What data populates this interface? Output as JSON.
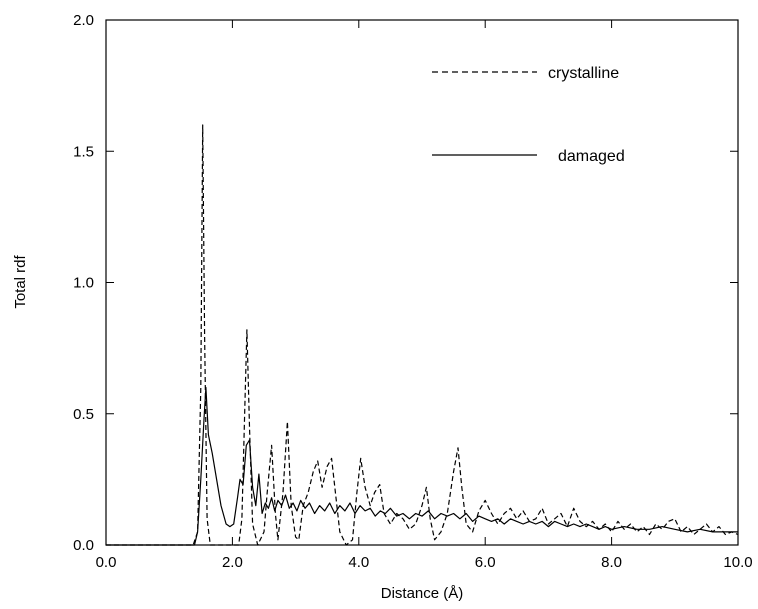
{
  "chart_data": {
    "type": "line",
    "xlabel": "Distance (Å)",
    "ylabel": "Total rdf",
    "xlim": [
      0.0,
      10.0
    ],
    "ylim": [
      0.0,
      2.0
    ],
    "xticks": [
      0.0,
      2.0,
      4.0,
      6.0,
      8.0,
      10.0
    ],
    "xtick_labels": [
      "0.0",
      "2.0",
      "4.0",
      "6.0",
      "8.0",
      "10.0"
    ],
    "yticks": [
      0.0,
      0.5,
      1.0,
      1.5,
      2.0
    ],
    "ytick_labels": [
      "0.0",
      "0.5",
      "1.0",
      "1.5",
      "2.0"
    ],
    "grid": false,
    "legend_position": "top-right",
    "series": [
      {
        "name": "crystalline",
        "style": "dashed",
        "color": "#000000",
        "points": [
          [
            0.0,
            0.0
          ],
          [
            1.38,
            0.0
          ],
          [
            1.45,
            0.05
          ],
          [
            1.5,
            0.6
          ],
          [
            1.53,
            1.6
          ],
          [
            1.56,
            0.8
          ],
          [
            1.6,
            0.1
          ],
          [
            1.65,
            0.0
          ],
          [
            2.1,
            0.0
          ],
          [
            2.15,
            0.1
          ],
          [
            2.2,
            0.55
          ],
          [
            2.23,
            0.82
          ],
          [
            2.27,
            0.45
          ],
          [
            2.32,
            0.08
          ],
          [
            2.4,
            0.0
          ],
          [
            2.5,
            0.05
          ],
          [
            2.55,
            0.2
          ],
          [
            2.62,
            0.38
          ],
          [
            2.68,
            0.12
          ],
          [
            2.72,
            0.02
          ],
          [
            2.8,
            0.2
          ],
          [
            2.87,
            0.47
          ],
          [
            2.93,
            0.15
          ],
          [
            3.0,
            0.03
          ],
          [
            3.05,
            0.02
          ],
          [
            3.12,
            0.15
          ],
          [
            3.2,
            0.2
          ],
          [
            3.28,
            0.28
          ],
          [
            3.35,
            0.32
          ],
          [
            3.42,
            0.22
          ],
          [
            3.5,
            0.3
          ],
          [
            3.57,
            0.33
          ],
          [
            3.63,
            0.2
          ],
          [
            3.7,
            0.05
          ],
          [
            3.8,
            0.0
          ],
          [
            3.9,
            0.02
          ],
          [
            3.97,
            0.2
          ],
          [
            4.03,
            0.33
          ],
          [
            4.1,
            0.22
          ],
          [
            4.18,
            0.15
          ],
          [
            4.25,
            0.2
          ],
          [
            4.33,
            0.23
          ],
          [
            4.4,
            0.12
          ],
          [
            4.5,
            0.08
          ],
          [
            4.6,
            0.12
          ],
          [
            4.7,
            0.1
          ],
          [
            4.8,
            0.06
          ],
          [
            4.9,
            0.08
          ],
          [
            5.0,
            0.15
          ],
          [
            5.07,
            0.22
          ],
          [
            5.13,
            0.1
          ],
          [
            5.2,
            0.02
          ],
          [
            5.3,
            0.05
          ],
          [
            5.4,
            0.12
          ],
          [
            5.5,
            0.28
          ],
          [
            5.57,
            0.37
          ],
          [
            5.63,
            0.22
          ],
          [
            5.7,
            0.08
          ],
          [
            5.8,
            0.05
          ],
          [
            5.9,
            0.13
          ],
          [
            6.0,
            0.17
          ],
          [
            6.1,
            0.12
          ],
          [
            6.2,
            0.08
          ],
          [
            6.3,
            0.12
          ],
          [
            6.4,
            0.14
          ],
          [
            6.5,
            0.1
          ],
          [
            6.6,
            0.13
          ],
          [
            6.7,
            0.09
          ],
          [
            6.8,
            0.1
          ],
          [
            6.9,
            0.14
          ],
          [
            7.0,
            0.08
          ],
          [
            7.1,
            0.1
          ],
          [
            7.2,
            0.12
          ],
          [
            7.3,
            0.07
          ],
          [
            7.4,
            0.14
          ],
          [
            7.5,
            0.09
          ],
          [
            7.6,
            0.07
          ],
          [
            7.7,
            0.09
          ],
          [
            7.8,
            0.06
          ],
          [
            7.9,
            0.08
          ],
          [
            8.0,
            0.05
          ],
          [
            8.1,
            0.09
          ],
          [
            8.2,
            0.06
          ],
          [
            8.3,
            0.08
          ],
          [
            8.4,
            0.05
          ],
          [
            8.5,
            0.07
          ],
          [
            8.6,
            0.04
          ],
          [
            8.7,
            0.08
          ],
          [
            8.8,
            0.06
          ],
          [
            8.9,
            0.09
          ],
          [
            9.0,
            0.1
          ],
          [
            9.1,
            0.05
          ],
          [
            9.2,
            0.07
          ],
          [
            9.3,
            0.04
          ],
          [
            9.4,
            0.06
          ],
          [
            9.5,
            0.08
          ],
          [
            9.6,
            0.05
          ],
          [
            9.7,
            0.07
          ],
          [
            9.8,
            0.04
          ],
          [
            9.9,
            0.05
          ],
          [
            10.0,
            0.04
          ]
        ]
      },
      {
        "name": "damaged",
        "style": "solid",
        "color": "#000000",
        "points": [
          [
            0.0,
            0.0
          ],
          [
            1.4,
            0.0
          ],
          [
            1.45,
            0.05
          ],
          [
            1.5,
            0.25
          ],
          [
            1.55,
            0.48
          ],
          [
            1.58,
            0.6
          ],
          [
            1.62,
            0.42
          ],
          [
            1.68,
            0.35
          ],
          [
            1.75,
            0.25
          ],
          [
            1.82,
            0.15
          ],
          [
            1.9,
            0.08
          ],
          [
            1.96,
            0.07
          ],
          [
            2.02,
            0.08
          ],
          [
            2.08,
            0.18
          ],
          [
            2.12,
            0.25
          ],
          [
            2.17,
            0.23
          ],
          [
            2.22,
            0.38
          ],
          [
            2.27,
            0.4
          ],
          [
            2.32,
            0.22
          ],
          [
            2.37,
            0.15
          ],
          [
            2.42,
            0.27
          ],
          [
            2.47,
            0.12
          ],
          [
            2.52,
            0.16
          ],
          [
            2.57,
            0.14
          ],
          [
            2.62,
            0.18
          ],
          [
            2.67,
            0.13
          ],
          [
            2.72,
            0.17
          ],
          [
            2.78,
            0.15
          ],
          [
            2.84,
            0.19
          ],
          [
            2.9,
            0.14
          ],
          [
            2.96,
            0.16
          ],
          [
            3.02,
            0.13
          ],
          [
            3.08,
            0.17
          ],
          [
            3.15,
            0.14
          ],
          [
            3.22,
            0.16
          ],
          [
            3.3,
            0.12
          ],
          [
            3.38,
            0.15
          ],
          [
            3.46,
            0.13
          ],
          [
            3.54,
            0.16
          ],
          [
            3.62,
            0.12
          ],
          [
            3.7,
            0.15
          ],
          [
            3.78,
            0.13
          ],
          [
            3.86,
            0.16
          ],
          [
            3.94,
            0.12
          ],
          [
            4.02,
            0.15
          ],
          [
            4.1,
            0.13
          ],
          [
            4.18,
            0.14
          ],
          [
            4.26,
            0.11
          ],
          [
            4.34,
            0.13
          ],
          [
            4.42,
            0.12
          ],
          [
            4.5,
            0.14
          ],
          [
            4.6,
            0.11
          ],
          [
            4.7,
            0.12
          ],
          [
            4.8,
            0.1
          ],
          [
            4.9,
            0.12
          ],
          [
            5.0,
            0.11
          ],
          [
            5.1,
            0.13
          ],
          [
            5.2,
            0.1
          ],
          [
            5.3,
            0.12
          ],
          [
            5.4,
            0.11
          ],
          [
            5.5,
            0.12
          ],
          [
            5.6,
            0.1
          ],
          [
            5.7,
            0.12
          ],
          [
            5.8,
            0.09
          ],
          [
            5.9,
            0.11
          ],
          [
            6.0,
            0.1
          ],
          [
            6.1,
            0.09
          ],
          [
            6.2,
            0.1
          ],
          [
            6.3,
            0.08
          ],
          [
            6.4,
            0.1
          ],
          [
            6.5,
            0.09
          ],
          [
            6.6,
            0.08
          ],
          [
            6.7,
            0.09
          ],
          [
            6.8,
            0.08
          ],
          [
            6.9,
            0.09
          ],
          [
            7.0,
            0.07
          ],
          [
            7.1,
            0.09
          ],
          [
            7.2,
            0.08
          ],
          [
            7.3,
            0.07
          ],
          [
            7.4,
            0.08
          ],
          [
            7.5,
            0.07
          ],
          [
            7.6,
            0.08
          ],
          [
            7.7,
            0.07
          ],
          [
            7.8,
            0.06
          ],
          [
            7.9,
            0.07
          ],
          [
            8.0,
            0.06
          ],
          [
            8.2,
            0.07
          ],
          [
            8.4,
            0.06
          ],
          [
            8.6,
            0.06
          ],
          [
            8.8,
            0.07
          ],
          [
            9.0,
            0.06
          ],
          [
            9.2,
            0.05
          ],
          [
            9.4,
            0.06
          ],
          [
            9.6,
            0.05
          ],
          [
            9.8,
            0.05
          ],
          [
            10.0,
            0.05
          ]
        ]
      }
    ]
  }
}
